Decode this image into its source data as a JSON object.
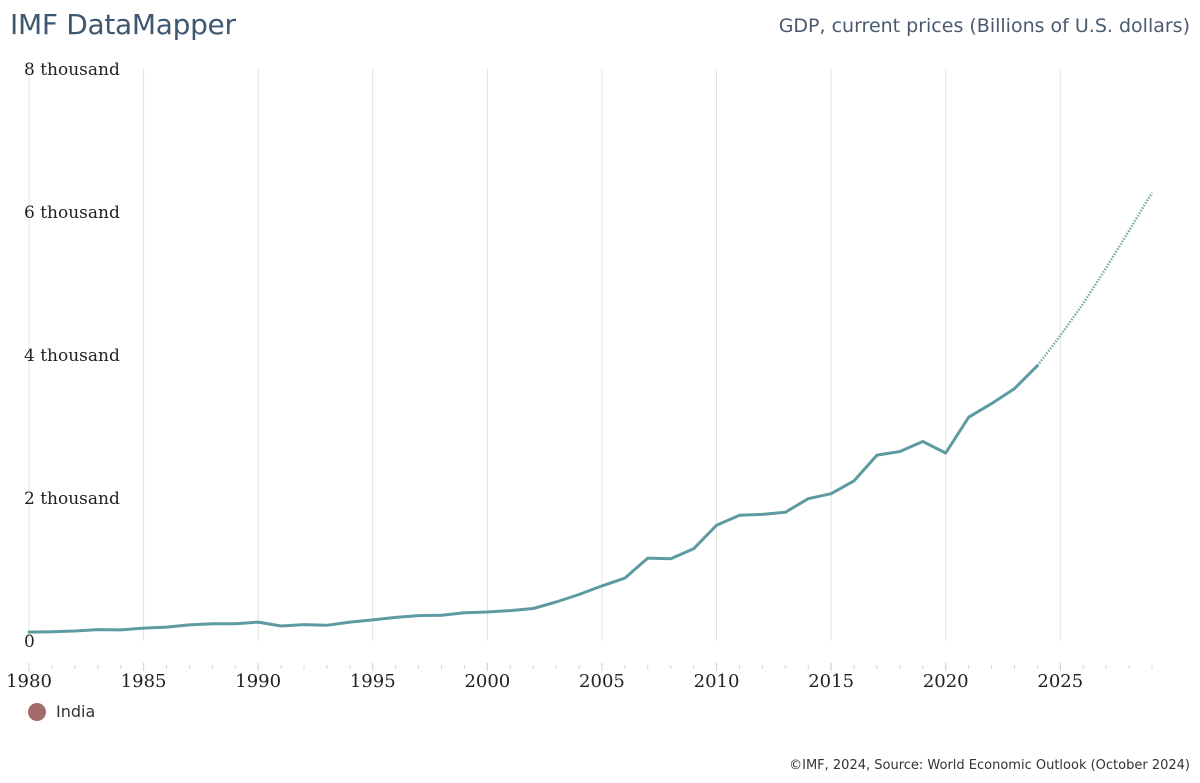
{
  "header": {
    "brand": "IMF DataMapper",
    "indicator_title": "GDP, current prices (Billions of U.S. dollars)"
  },
  "legend": {
    "items": [
      {
        "label": "India",
        "color": "#a46b6b"
      }
    ]
  },
  "footer": {
    "source": "©IMF, 2024, Source: World Economic Outlook (October 2024)"
  },
  "chart_data": {
    "type": "line",
    "title": "GDP, current prices (Billions of U.S. dollars)",
    "xlabel": "",
    "ylabel": "",
    "xlim": [
      1980,
      2029
    ],
    "ylim": [
      0,
      8000
    ],
    "grid": "vertical",
    "legend_position": "bottom-left",
    "yticks": [
      {
        "value": 0,
        "label": "0"
      },
      {
        "value": 2000,
        "label": "2 thousand"
      },
      {
        "value": 4000,
        "label": "4 thousand"
      },
      {
        "value": 6000,
        "label": "6 thousand"
      },
      {
        "value": 8000,
        "label": "8 thousand"
      }
    ],
    "xticks": [
      {
        "value": 1980,
        "label": "1980"
      },
      {
        "value": 1985,
        "label": "1985"
      },
      {
        "value": 1990,
        "label": "1990"
      },
      {
        "value": 1995,
        "label": "1995"
      },
      {
        "value": 2000,
        "label": "2000"
      },
      {
        "value": 2005,
        "label": "2005"
      },
      {
        "value": 2010,
        "label": "2010"
      },
      {
        "value": 2015,
        "label": "2015"
      },
      {
        "value": 2020,
        "label": "2020"
      },
      {
        "value": 2025,
        "label": "2025"
      }
    ],
    "series": [
      {
        "name": "India",
        "color": "#5e9ba0",
        "projection_start": 2024,
        "x": [
          1980,
          1981,
          1982,
          1983,
          1984,
          1985,
          1986,
          1987,
          1988,
          1989,
          1990,
          1991,
          1992,
          1993,
          1994,
          1995,
          1996,
          1997,
          1998,
          1999,
          2000,
          2001,
          2002,
          2003,
          2004,
          2005,
          2006,
          2007,
          2008,
          2009,
          2010,
          2011,
          2012,
          2013,
          2014,
          2015,
          2016,
          2017,
          2018,
          2019,
          2020,
          2021,
          2022,
          2023,
          2024,
          2025,
          2026,
          2027,
          2028,
          2029
        ],
        "values": [
          125,
          130,
          140,
          160,
          155,
          180,
          195,
          225,
          240,
          240,
          265,
          210,
          230,
          220,
          265,
          295,
          330,
          355,
          360,
          395,
          405,
          425,
          455,
          545,
          650,
          770,
          880,
          1160,
          1150,
          1290,
          1620,
          1760,
          1770,
          1800,
          1990,
          2060,
          2240,
          2600,
          2650,
          2790,
          2630,
          3130,
          3320,
          3530,
          3850,
          4270,
          4720,
          5220,
          5740,
          6270
        ]
      }
    ]
  }
}
